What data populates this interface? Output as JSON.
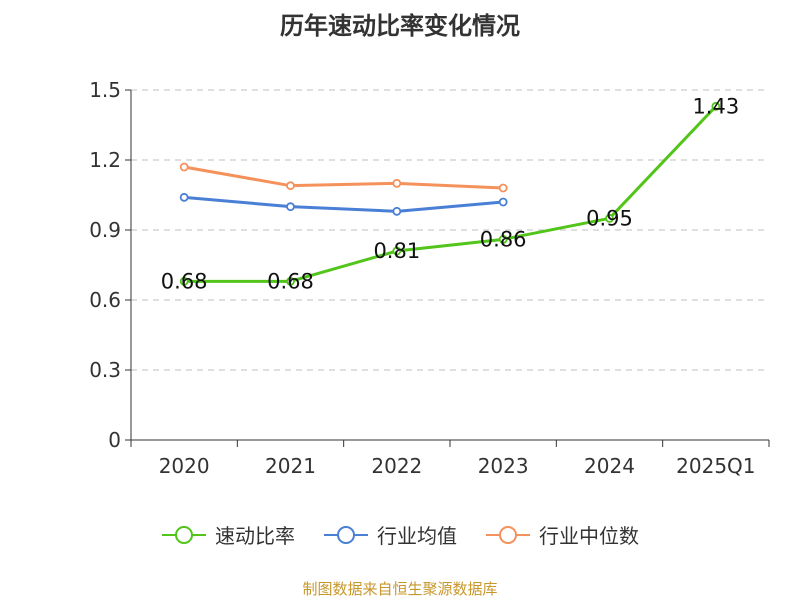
{
  "chart_data": {
    "type": "line",
    "title": "历年速动比率变化情况",
    "categories": [
      "2020",
      "2021",
      "2022",
      "2023",
      "2024",
      "2025Q1"
    ],
    "ylim": [
      0,
      1.5
    ],
    "yticks": [
      "0",
      "0.3",
      "0.6",
      "0.9",
      "1.2",
      "1.5"
    ],
    "ytick_values": [
      0,
      0.3,
      0.6,
      0.9,
      1.2,
      1.5
    ],
    "grid": true,
    "legend_position": "bottom",
    "series": [
      {
        "name": "速动比率",
        "color": "#52c41a",
        "values": [
          0.68,
          0.68,
          0.81,
          0.86,
          0.95,
          1.43
        ],
        "labels": [
          "0.68",
          "0.68",
          "0.81",
          "0.86",
          "0.95",
          "1.43"
        ]
      },
      {
        "name": "行业均值",
        "color": "#4a7fd6",
        "values": [
          1.04,
          1.0,
          0.98,
          1.02,
          null,
          null
        ]
      },
      {
        "name": "行业中位数",
        "color": "#f5915a",
        "values": [
          1.17,
          1.09,
          1.1,
          1.08,
          null,
          null
        ]
      }
    ]
  },
  "source": "制图数据来自恒生聚源数据库"
}
